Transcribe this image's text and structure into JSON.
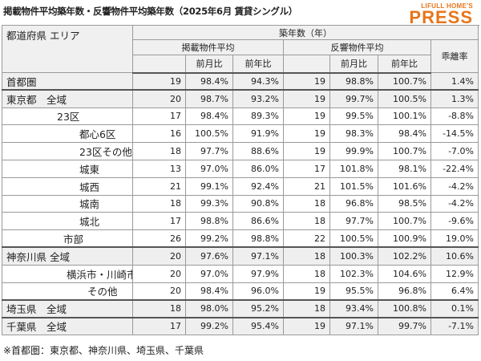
{
  "title": "掲載物件平均築年数・反響物件平均築年数（2025年6月 賃貸シングル）",
  "logo": {
    "top": "LIFULL HOME'S",
    "main": "PRESS"
  },
  "header": {
    "area": "都道府県 エリア",
    "chikunen": "築年数（年）",
    "listed_avg": "掲載物件平均",
    "response_avg": "反響物件平均",
    "divergence": "乖離率",
    "mom": "前月比",
    "yoy": "前年比"
  },
  "rows": [
    {
      "name": "首都圏",
      "l": "19",
      "lm": "98.4%",
      "ly": "94.3%",
      "r": "19",
      "rm": "98.8%",
      "ry": "100.7%",
      "d": "1.4%"
    },
    {
      "name": "東京都　全域",
      "l": "20",
      "lm": "98.7%",
      "ly": "93.2%",
      "r": "19",
      "rm": "99.7%",
      "ry": "100.5%",
      "d": "1.3%"
    },
    {
      "name": "23区",
      "l": "17",
      "lm": "98.4%",
      "ly": "89.3%",
      "r": "19",
      "rm": "99.5%",
      "ry": "100.1%",
      "d": "-8.8%"
    },
    {
      "name": "都心6区",
      "l": "16",
      "lm": "100.5%",
      "ly": "91.9%",
      "r": "19",
      "rm": "98.3%",
      "ry": "98.4%",
      "d": "-14.5%"
    },
    {
      "name": "23区その他",
      "l": "18",
      "lm": "97.7%",
      "ly": "88.6%",
      "r": "19",
      "rm": "99.9%",
      "ry": "100.7%",
      "d": "-7.0%"
    },
    {
      "name": "城東",
      "l": "13",
      "lm": "97.0%",
      "ly": "86.0%",
      "r": "17",
      "rm": "101.8%",
      "ry": "98.1%",
      "d": "-22.4%"
    },
    {
      "name": "城西",
      "l": "21",
      "lm": "99.1%",
      "ly": "92.4%",
      "r": "21",
      "rm": "101.5%",
      "ry": "101.6%",
      "d": "-4.2%"
    },
    {
      "name": "城南",
      "l": "18",
      "lm": "99.3%",
      "ly": "90.8%",
      "r": "18",
      "rm": "96.8%",
      "ry": "98.5%",
      "d": "-4.2%"
    },
    {
      "name": "城北",
      "l": "17",
      "lm": "98.8%",
      "ly": "86.6%",
      "r": "18",
      "rm": "97.7%",
      "ry": "100.7%",
      "d": "-9.6%"
    },
    {
      "name": "市部",
      "l": "26",
      "lm": "99.2%",
      "ly": "98.8%",
      "r": "22",
      "rm": "100.5%",
      "ry": "100.9%",
      "d": "19.0%"
    },
    {
      "name": "神奈川県 全域",
      "l": "20",
      "lm": "97.6%",
      "ly": "97.1%",
      "r": "18",
      "rm": "100.3%",
      "ry": "102.2%",
      "d": "10.6%"
    },
    {
      "name": "横浜市・川崎市",
      "l": "20",
      "lm": "97.0%",
      "ly": "97.9%",
      "r": "18",
      "rm": "102.3%",
      "ry": "104.6%",
      "d": "12.9%"
    },
    {
      "name": "その他",
      "l": "20",
      "lm": "98.4%",
      "ly": "96.0%",
      "r": "19",
      "rm": "95.5%",
      "ry": "96.8%",
      "d": "6.4%"
    },
    {
      "name": "埼玉県　全域",
      "l": "18",
      "lm": "98.0%",
      "ly": "95.2%",
      "r": "18",
      "rm": "93.4%",
      "ry": "100.8%",
      "d": "0.1%"
    },
    {
      "name": "千葉県　全域",
      "l": "17",
      "lm": "99.2%",
      "ly": "95.4%",
      "r": "19",
      "rm": "97.1%",
      "ry": "99.7%",
      "d": "-7.1%"
    }
  ],
  "note": "※首都圏：東京都、神奈川県、埼玉県、千葉県"
}
